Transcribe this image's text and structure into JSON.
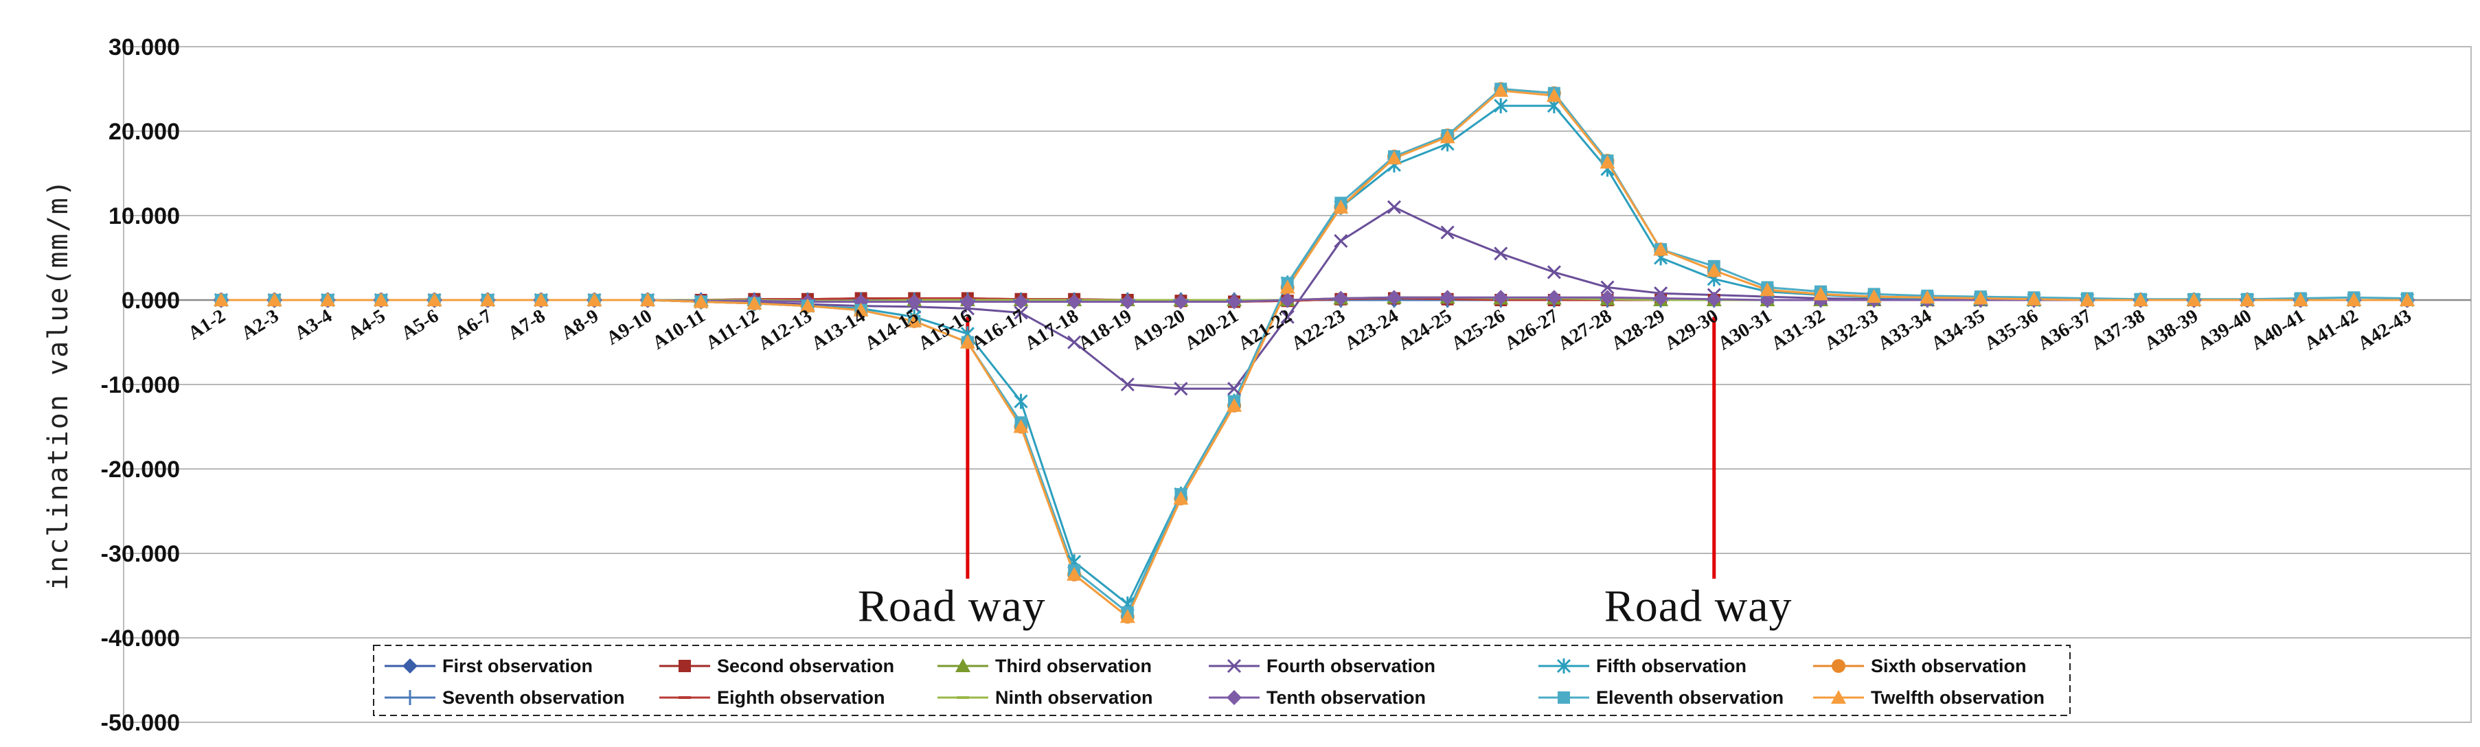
{
  "chart_data": {
    "type": "line",
    "ylabel": "inclination value(mm/m)",
    "xlabel": "",
    "ylim": [
      -50,
      30
    ],
    "yticks": [
      "30.000",
      "20.000",
      "10.000",
      "0.000",
      "-10.000",
      "-20.000",
      "-30.000",
      "-40.000",
      "-50.000"
    ],
    "grid": true,
    "legend_position": "bottom",
    "categories": [
      "A1-2",
      "A2-3",
      "A3-4",
      "A4-5",
      "A5-6",
      "A6-7",
      "A7-8",
      "A8-9",
      "A9-10",
      "A10-11",
      "A11-12",
      "A12-13",
      "A13-14",
      "A14-15",
      "A15-16",
      "A16-17",
      "A17-18",
      "A18-19",
      "A19-20",
      "A20-21",
      "A21-22",
      "A22-23",
      "A23-24",
      "A24-25",
      "A25-26",
      "A26-27",
      "A27-28",
      "A28-29",
      "A29-30",
      "A30-31",
      "A31-32",
      "A32-33",
      "A33-34",
      "A34-35",
      "A35-36",
      "A36-37",
      "A37-38",
      "A38-39",
      "A39-40",
      "A40-41",
      "A41-42",
      "A42-43"
    ],
    "annotations": [
      {
        "text": "Road way",
        "x": "A15-16",
        "color": "#e00000"
      },
      {
        "text": "Road way",
        "x": "A29-30",
        "color": "#e00000"
      }
    ],
    "series": [
      {
        "name": "First observation",
        "color": "#3a5ea8",
        "marker": "diamond",
        "values": [
          0,
          0,
          0,
          0,
          0,
          0,
          0,
          0,
          0,
          0,
          0,
          0,
          0,
          0,
          0,
          0,
          0,
          0,
          0,
          0,
          0,
          0,
          0,
          0,
          0,
          0,
          0,
          0,
          0,
          0,
          0,
          0,
          0,
          0,
          0,
          0,
          0,
          0,
          0,
          0,
          0,
          0
        ]
      },
      {
        "name": "Second observation",
        "color": "#a12a26",
        "marker": "square",
        "values": [
          0,
          0,
          0,
          0,
          0,
          0,
          0,
          0,
          0,
          0,
          0.1,
          0.1,
          0.2,
          0.2,
          0.2,
          0.1,
          0.1,
          0,
          -0.1,
          -0.2,
          -0.1,
          0.1,
          0.2,
          0.1,
          0,
          0,
          0,
          0,
          0,
          0,
          0,
          0,
          0,
          0,
          0,
          0,
          0,
          0,
          0,
          0,
          0,
          0
        ]
      },
      {
        "name": "Third observation",
        "color": "#7a9a2e",
        "marker": "triangle",
        "values": [
          0,
          0,
          0,
          0,
          0,
          0,
          0,
          0,
          0,
          0,
          0,
          -0.1,
          -0.1,
          0,
          0,
          0,
          0,
          0,
          0,
          0,
          0,
          0.2,
          0.3,
          0.3,
          0.2,
          0.2,
          0.1,
          0,
          0,
          0,
          0,
          0,
          0,
          0,
          0,
          0,
          0,
          0,
          0,
          0,
          0,
          0
        ]
      },
      {
        "name": "Fourth observation",
        "color": "#6a4f99",
        "marker": "x",
        "values": [
          0,
          0,
          0,
          0,
          0,
          0,
          0,
          0,
          0,
          -0.2,
          -0.3,
          -0.5,
          -0.7,
          -0.8,
          -1.0,
          -1.5,
          -5,
          -10,
          -10.5,
          -10.5,
          -2,
          7,
          11,
          8,
          5.5,
          3.3,
          1.5,
          0.8,
          0.6,
          0.4,
          0.2,
          0.1,
          0,
          0,
          0,
          0,
          0,
          0,
          0,
          0,
          0,
          0
        ]
      },
      {
        "name": "Fifth observation",
        "color": "#2b9fbd",
        "marker": "asterisk",
        "values": [
          0,
          0,
          0,
          0,
          0,
          0,
          0,
          0,
          0,
          -0.2,
          -0.4,
          -0.7,
          -1.0,
          -2.0,
          -4.0,
          -12,
          -31,
          -36,
          -23,
          -12,
          2,
          11,
          16,
          18.5,
          23,
          23,
          15.5,
          5,
          2.5,
          1.0,
          0.6,
          0.3,
          0.2,
          0.1,
          0,
          0,
          0,
          0,
          0,
          0,
          0,
          0
        ]
      },
      {
        "name": "Sixth observation",
        "color": "#e8882b",
        "marker": "circle",
        "values": [
          0,
          0,
          0,
          0,
          0,
          0,
          0,
          0,
          0,
          -0.2,
          -0.4,
          -0.7,
          -1.2,
          -2.5,
          -5.0,
          -15,
          -32.5,
          -37.5,
          -23.5,
          -12.5,
          1.5,
          11,
          17,
          19.5,
          25,
          24.5,
          16.5,
          6,
          3.5,
          1.2,
          0.7,
          0.4,
          0.3,
          0.2,
          0.1,
          0,
          0,
          0,
          0,
          0,
          0,
          0
        ]
      },
      {
        "name": "Seventh observation",
        "color": "#4a7ab8",
        "marker": "plus",
        "values": [
          0,
          0,
          0,
          0,
          0,
          0,
          0,
          0,
          0,
          0,
          0,
          0,
          0,
          0,
          0,
          0,
          0,
          0,
          0,
          0,
          0,
          0,
          0,
          0,
          0,
          0,
          0,
          0,
          0,
          0,
          0,
          0,
          0,
          0,
          0,
          0,
          0,
          0,
          0,
          0,
          0,
          0
        ]
      },
      {
        "name": "Eighth observation",
        "color": "#b83a35",
        "marker": "dash",
        "values": [
          0,
          0,
          0,
          0,
          0,
          0,
          0,
          0,
          0,
          0,
          0.1,
          0.1,
          0.2,
          0.2,
          0.2,
          0.1,
          0.1,
          0,
          -0.1,
          -0.2,
          -0.1,
          0.1,
          0.2,
          0.1,
          0,
          0,
          0,
          0,
          0,
          0,
          0,
          0,
          0,
          0,
          0,
          0,
          0,
          0,
          0,
          0,
          0,
          0
        ]
      },
      {
        "name": "Ninth observation",
        "color": "#9bb84a",
        "marker": "dash",
        "values": [
          0,
          0,
          0,
          0,
          0,
          0,
          0,
          0,
          0,
          0,
          0,
          -0.1,
          -0.1,
          0,
          0,
          0,
          0,
          0,
          0,
          0,
          0,
          0.2,
          0.3,
          0.3,
          0.2,
          0.2,
          0.1,
          0,
          0,
          0,
          0,
          0,
          0,
          0,
          0,
          0,
          0,
          0,
          0,
          0,
          0,
          0
        ]
      },
      {
        "name": "Tenth observation",
        "color": "#7d5ba6",
        "marker": "diamond",
        "values": [
          0,
          0,
          0,
          0,
          0,
          0,
          0,
          0,
          0,
          -0.1,
          -0.1,
          -0.2,
          -0.2,
          -0.2,
          -0.2,
          -0.2,
          -0.2,
          -0.2,
          -0.2,
          -0.2,
          0,
          0.2,
          0.3,
          0.3,
          0.3,
          0.3,
          0.3,
          0.2,
          0.1,
          0,
          0,
          0,
          0,
          0,
          0,
          0,
          0,
          0,
          0,
          0,
          0,
          0
        ]
      },
      {
        "name": "Eleventh observation",
        "color": "#4bacc6",
        "marker": "square",
        "values": [
          0,
          0,
          0,
          0,
          0,
          0,
          0,
          0,
          0,
          -0.2,
          -0.4,
          -0.7,
          -1.2,
          -2.5,
          -5.0,
          -14.5,
          -32,
          -37,
          -23,
          -12,
          2,
          11.5,
          17,
          19.5,
          25,
          24.5,
          16.5,
          6,
          4,
          1.5,
          1.0,
          0.7,
          0.5,
          0.4,
          0.3,
          0.2,
          0.1,
          0.1,
          0.1,
          0.2,
          0.3,
          0.2
        ]
      },
      {
        "name": "Twelfth observation",
        "color": "#f59d3d",
        "marker": "triangle",
        "values": [
          0,
          0,
          0,
          0,
          0,
          0,
          0,
          0,
          0,
          -0.2,
          -0.4,
          -0.7,
          -1.2,
          -2.5,
          -5.0,
          -15,
          -32.5,
          -37.5,
          -23.5,
          -12.5,
          1.5,
          11,
          16.8,
          19.3,
          24.8,
          24.2,
          16.3,
          6,
          3.5,
          1.2,
          0.7,
          0.4,
          0.3,
          0.2,
          0.1,
          0,
          0,
          0,
          0,
          0,
          0,
          0
        ]
      }
    ]
  }
}
